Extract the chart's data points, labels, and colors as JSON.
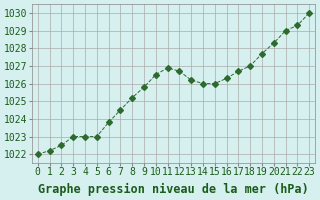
{
  "x": [
    0,
    1,
    2,
    3,
    4,
    5,
    6,
    7,
    8,
    9,
    10,
    11,
    12,
    13,
    14,
    15,
    16,
    17,
    18,
    19,
    20,
    21,
    22,
    23
  ],
  "y": [
    1022.0,
    1022.2,
    1022.5,
    1023.0,
    1023.0,
    1023.0,
    1023.8,
    1024.5,
    1025.2,
    1025.8,
    1026.5,
    1026.9,
    1026.7,
    1026.2,
    1026.0,
    1026.0,
    1026.3,
    1026.7,
    1027.0,
    1027.7,
    1028.3,
    1029.0,
    1029.3,
    1030.0
  ],
  "line_color": "#2d6a2d",
  "marker": "D",
  "marker_size": 3,
  "line_width": 0.7,
  "bg_color": "#d6f0f0",
  "grid_color": "#aaaaaa",
  "xlabel": "Graphe pression niveau de la mer (hPa)",
  "xlabel_color": "#1a5c1a",
  "xlabel_fontsize": 8.5,
  "tick_color": "#1a5c1a",
  "tick_fontsize": 7,
  "ylim": [
    1021.5,
    1030.5
  ],
  "xlim": [
    -0.5,
    23.5
  ],
  "yticks": [
    1022,
    1023,
    1024,
    1025,
    1026,
    1027,
    1028,
    1029,
    1030
  ],
  "xticks": [
    0,
    1,
    2,
    3,
    4,
    5,
    6,
    7,
    8,
    9,
    10,
    11,
    12,
    13,
    14,
    15,
    16,
    17,
    18,
    19,
    20,
    21,
    22,
    23
  ]
}
